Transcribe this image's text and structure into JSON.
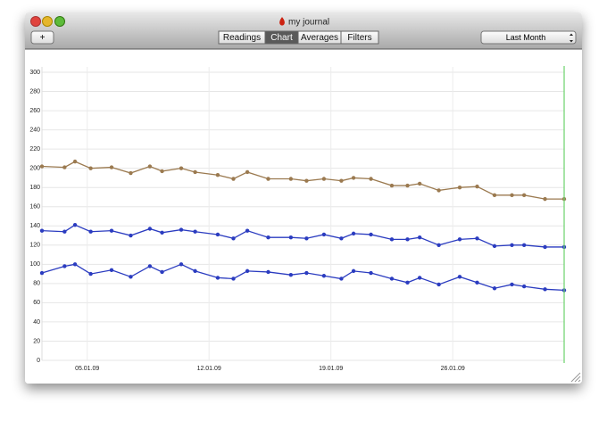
{
  "window": {
    "title": "my journal"
  },
  "toolbar": {
    "add_button": "+",
    "segments": [
      "Readings",
      "Chart",
      "Averages",
      "Filters"
    ],
    "selected_segment": 1,
    "period": "Last Month"
  },
  "chart_data": {
    "type": "line",
    "x": [
      2.4,
      3.7,
      4.3,
      5.2,
      6.4,
      7.5,
      8.6,
      9.3,
      10.4,
      11.2,
      12.5,
      13.4,
      14.2,
      15.4,
      16.7,
      17.6,
      18.6,
      19.6,
      20.3,
      21.3,
      22.5,
      23.4,
      24.1,
      25.2,
      26.4,
      27.4,
      28.4,
      29.4,
      30.1,
      31.3,
      32.4
    ],
    "series": [
      {
        "color": "#9b7a50",
        "values": [
          202,
          201,
          207,
          200,
          201,
          195,
          202,
          197,
          200,
          196,
          193,
          189,
          196,
          189,
          189,
          187,
          189,
          187,
          190,
          189,
          182,
          182,
          184,
          177,
          180,
          181,
          172,
          172,
          172,
          168,
          168
        ]
      },
      {
        "color": "#2b3cc0",
        "values": [
          135,
          134,
          141,
          134,
          135,
          130,
          137,
          133,
          136,
          134,
          131,
          127,
          135,
          128,
          128,
          127,
          131,
          127,
          132,
          131,
          126,
          126,
          128,
          120,
          126,
          127,
          119,
          120,
          120,
          118,
          118
        ]
      },
      {
        "color": "#2b3cc0",
        "values": [
          91,
          98,
          100,
          90,
          94,
          87,
          98,
          92,
          100,
          93,
          86,
          85,
          93,
          92,
          89,
          91,
          88,
          85,
          93,
          91,
          85,
          81,
          86,
          79,
          87,
          81,
          75,
          79,
          77,
          74,
          73
        ]
      }
    ],
    "xlim": [
      2.4,
      32.4
    ],
    "xticks": [
      {
        "value": 5,
        "label": "05.01.09"
      },
      {
        "value": 12,
        "label": "12.01.09"
      },
      {
        "value": 19,
        "label": "19.01.09"
      },
      {
        "value": 26,
        "label": "26.01.09"
      }
    ],
    "ylim": [
      0,
      300
    ],
    "yticks": [
      0,
      20,
      40,
      60,
      80,
      100,
      120,
      140,
      160,
      180,
      200,
      220,
      240,
      260,
      280,
      300
    ],
    "grid": true
  }
}
